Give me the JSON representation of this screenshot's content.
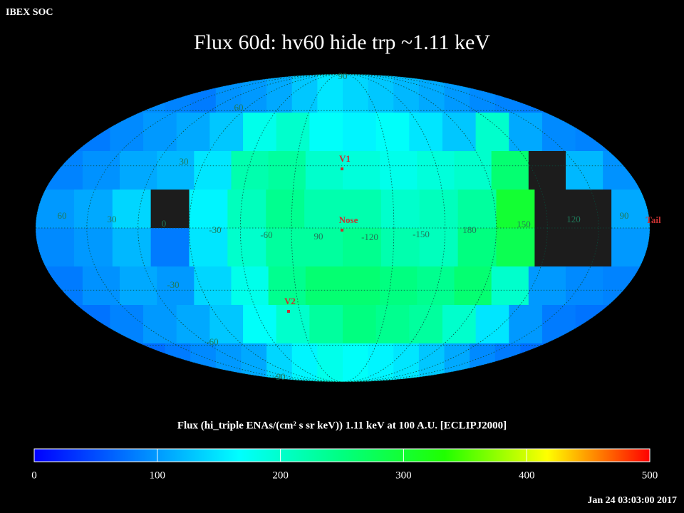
{
  "header": {
    "source": "IBEX SOC",
    "title": "Flux   60d: hv60 hide trp ~1.11 keV",
    "timestamp": "Jan 24 03:03:00 2017"
  },
  "map": {
    "lon_labels": [
      "60",
      "30",
      "0",
      "-30",
      "-60",
      "90",
      "-120",
      "-150",
      "180",
      "150",
      "120",
      "90"
    ],
    "lat_labels": [
      "90",
      "60",
      "30",
      "-30",
      "-60",
      "-90"
    ],
    "markers": [
      "V1",
      "Nose",
      "V2",
      "Tail"
    ]
  },
  "flux": {
    "colors": [
      "#0000ff",
      "#0080ff",
      "#00ffff",
      "#00ff80",
      "#20ff00",
      "#ffff00",
      "#ff0000"
    ],
    "no_data_color": "#1c1c1c",
    "values": [
      [
        90,
        85,
        80,
        95,
        100,
        110,
        130,
        150,
        140,
        130,
        120,
        110,
        100,
        90,
        85,
        80
      ],
      [
        80,
        90,
        100,
        110,
        130,
        180,
        200,
        170,
        160,
        170,
        150,
        130,
        200,
        110,
        90,
        85
      ],
      [
        85,
        95,
        110,
        120,
        150,
        220,
        230,
        200,
        190,
        180,
        190,
        200,
        260,
        null,
        120,
        95
      ],
      [
        100,
        110,
        140,
        null,
        160,
        210,
        240,
        220,
        220,
        200,
        210,
        230,
        300,
        null,
        null,
        110
      ],
      [
        90,
        100,
        120,
        80,
        150,
        200,
        230,
        230,
        240,
        220,
        210,
        250,
        280,
        null,
        null,
        100
      ],
      [
        80,
        95,
        110,
        100,
        140,
        180,
        240,
        260,
        260,
        250,
        240,
        260,
        200,
        100,
        90,
        85
      ],
      [
        75,
        85,
        100,
        110,
        130,
        170,
        200,
        230,
        250,
        240,
        230,
        200,
        150,
        100,
        80,
        75
      ],
      [
        70,
        80,
        90,
        100,
        110,
        140,
        160,
        180,
        170,
        160,
        150,
        130,
        110,
        90,
        80,
        70
      ]
    ]
  },
  "colorbar": {
    "label": "Flux (hi_triple ENAs/(cm² s sr keV))  1.11 keV at 100 A.U. [ECLIPJ2000]",
    "clim": [
      0,
      500
    ],
    "ticks": [
      0,
      100,
      200,
      300,
      400,
      500
    ]
  }
}
